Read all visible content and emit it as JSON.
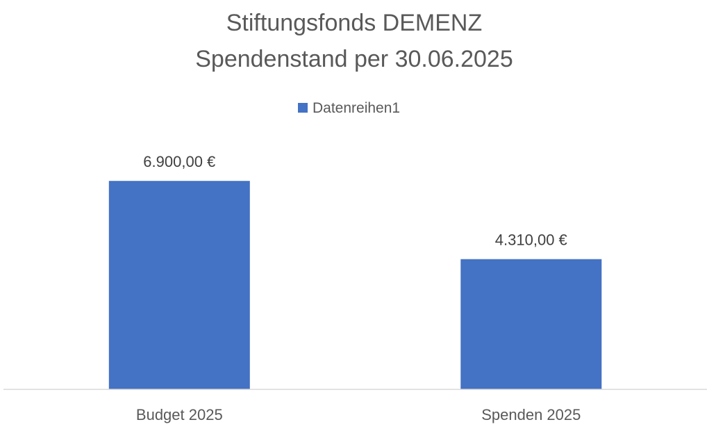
{
  "chart_data": {
    "type": "bar",
    "title_lines": [
      "Stiftungsfonds DEMENZ",
      "Spendenstand per 30.06.2025"
    ],
    "categories": [
      "Budget 2025",
      "Spenden 2025"
    ],
    "series": [
      {
        "name": "Datenreihen1",
        "values": [
          6900,
          4310
        ],
        "labels": [
          "6.900,00 €",
          "4.310,00 €"
        ],
        "color": "#4472C4"
      }
    ],
    "ylim": [
      0,
      11000
    ],
    "grid": false,
    "legend": "top",
    "axis_color": "#D9D9D9"
  }
}
